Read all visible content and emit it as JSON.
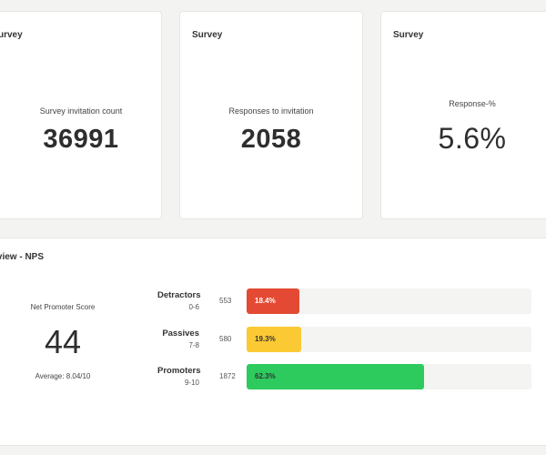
{
  "kpi_cards": [
    {
      "title": "Survey",
      "title_visible": "urvey",
      "label": "Survey invitation count",
      "value": "36991"
    },
    {
      "title": "Survey",
      "title_visible": "Survey",
      "label": "Responses to invitation",
      "value": "2058"
    },
    {
      "title": "Survey",
      "title_visible": "Survey",
      "label": "Response-%",
      "value": "5.6%"
    }
  ],
  "nps": {
    "title": "Overview - NPS",
    "title_visible": "rview - NPS",
    "score_label": "Net Promoter Score",
    "score": "44",
    "average": "Average: 8.04/10",
    "segments": [
      {
        "name": "Detractors",
        "range": "0-6",
        "count": "553",
        "percent_label": "18.4%",
        "percent": 18.4,
        "color": "#e44a33",
        "text_color": "#ffffff"
      },
      {
        "name": "Passives",
        "range": "7-8",
        "count": "580",
        "percent_label": "19.3%",
        "percent": 19.3,
        "color": "#fbc933",
        "text_color": "#333333"
      },
      {
        "name": "Promoters",
        "range": "9-10",
        "count": "1872",
        "percent_label": "62.3%",
        "percent": 62.3,
        "color": "#2dcb5d",
        "text_color": "#333333"
      }
    ]
  }
}
